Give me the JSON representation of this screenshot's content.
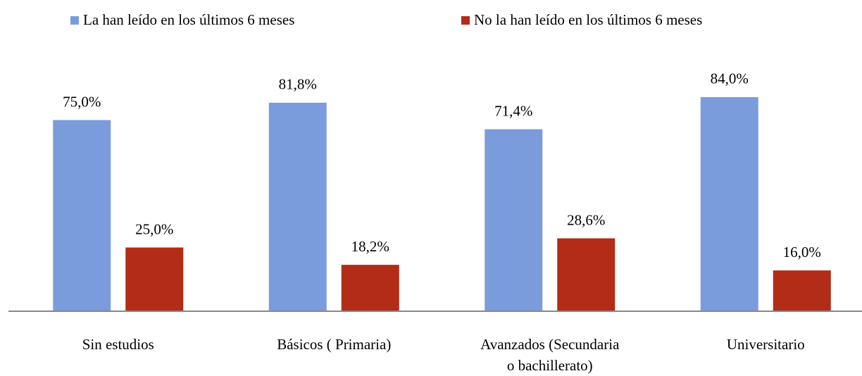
{
  "chart_data": {
    "type": "bar",
    "categories": [
      "Sin estudios",
      "Básicos ( Primaria)",
      "Avanzados (Secundaria\no bachillerato)",
      "Universitario"
    ],
    "series": [
      {
        "name": "La han leído en los últimos 6 meses",
        "color": "#7b9cdc",
        "values": [
          75.0,
          81.8,
          71.4,
          84.0
        ],
        "value_labels": [
          "75,0%",
          "81,8%",
          "71,4%",
          "84,0%"
        ]
      },
      {
        "name": "No la han leído en los últimos 6 meses",
        "color": "#b22c17",
        "values": [
          25.0,
          18.2,
          28.6,
          16.0
        ],
        "value_labels": [
          "25,0%",
          "18,2%",
          "28,6%",
          "16,0%"
        ]
      }
    ],
    "ylim": [
      0,
      100
    ],
    "legend": "top"
  }
}
